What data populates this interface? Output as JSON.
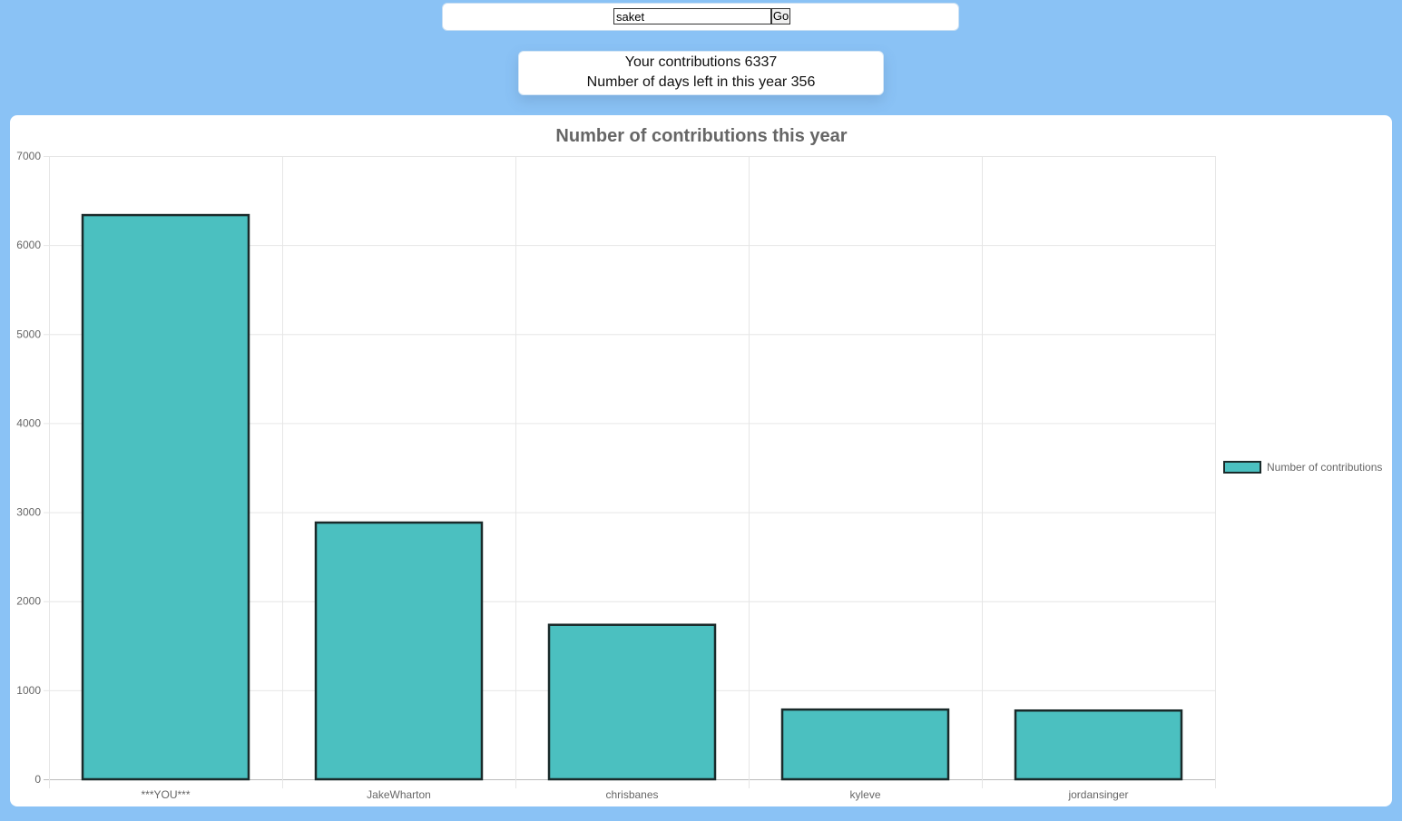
{
  "search": {
    "value": "saket",
    "go_label": "Go"
  },
  "info": {
    "contributions_text": "Your contributions 6337",
    "days_left_text": "Number of days left in this year 356"
  },
  "colors": {
    "background": "#8ac2f5",
    "bar_fill": "#4bc0c0",
    "bar_border": "#1a2a2a",
    "grid": "#e6e6e6",
    "text": "#666666"
  },
  "chart_data": {
    "type": "bar",
    "title": "Number of contributions this year",
    "xlabel": "",
    "ylabel": "",
    "categories": [
      "***YOU***",
      "JakeWharton",
      "chrisbanes",
      "kyleve",
      "jordansinger"
    ],
    "series": [
      {
        "name": "Number of contributions",
        "values": [
          6337,
          2883,
          1735,
          783,
          772
        ]
      }
    ],
    "ylim": [
      0,
      7000
    ],
    "yticks": [
      0,
      1000,
      2000,
      3000,
      4000,
      5000,
      6000,
      7000
    ],
    "grid": true,
    "legend_position": "right"
  }
}
